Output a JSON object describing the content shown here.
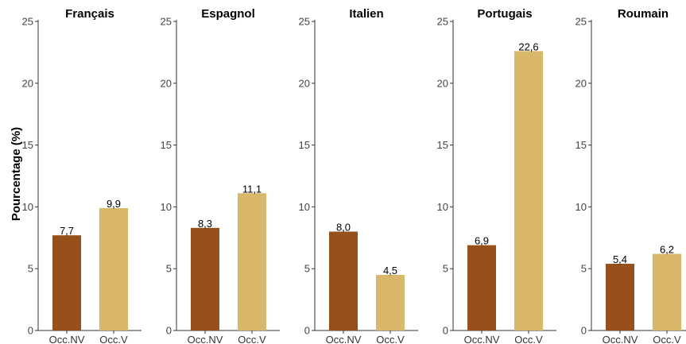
{
  "chart_data": {
    "type": "bar",
    "ylabel": "Pourcentage (%)",
    "ylim": [
      0,
      25
    ],
    "yticks": [
      0,
      5,
      10,
      15,
      20,
      25
    ],
    "grid": false,
    "categories": [
      "Occ.NV",
      "Occ.V"
    ],
    "colors": {
      "Occ.NV": "#97501a",
      "Occ.V": "#d9b86b"
    },
    "panels": [
      {
        "title": "Français",
        "values": [
          7.7,
          9.9
        ],
        "labels": [
          "7,7",
          "9,9"
        ]
      },
      {
        "title": "Espagnol",
        "values": [
          8.3,
          11.1
        ],
        "labels": [
          "8,3",
          "11,1"
        ]
      },
      {
        "title": "Italien",
        "values": [
          8.0,
          4.5
        ],
        "labels": [
          "8,0",
          "4,5"
        ]
      },
      {
        "title": "Portugais",
        "values": [
          6.9,
          22.6
        ],
        "labels": [
          "6,9",
          "22,6"
        ]
      },
      {
        "title": "Roumain",
        "values": [
          5.4,
          6.2
        ],
        "labels": [
          "5,4",
          "6,2"
        ]
      }
    ]
  }
}
